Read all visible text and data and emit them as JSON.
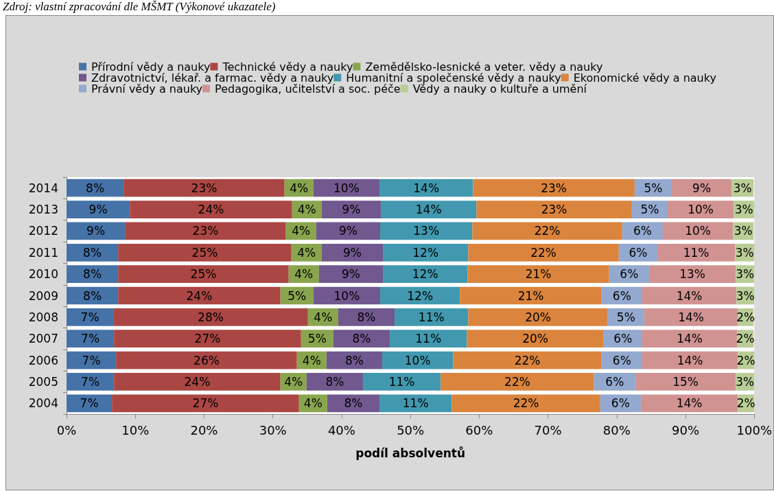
{
  "chart_data": {
    "type": "bar",
    "orientation": "horizontal",
    "stacked": true,
    "xlabel": "podíl absolventů",
    "annotations": [
      "Zdroj: vlastní zpracování dle MŠMT (Výkonové ukazatele)"
    ],
    "categories": [
      "2014",
      "2013",
      "2012",
      "2011",
      "2010",
      "2009",
      "2008",
      "2007",
      "2006",
      "2005",
      "2004"
    ],
    "series": [
      {
        "name": "Přírodní vědy a nauky",
        "color": "#4572a7",
        "values": [
          8.3,
          9.2,
          8.5,
          7.5,
          7.5,
          7.5,
          6.8,
          6.9,
          7.2,
          6.9,
          6.6
        ],
        "value_labels": [
          "8%",
          "9%",
          "9%",
          "8%",
          "8%",
          "8%",
          "7%",
          "7%",
          "7%",
          "7%",
          "7%"
        ]
      },
      {
        "name": "Technické vědy a nauky",
        "color": "#aa4643",
        "values": [
          23.4,
          23.6,
          23.4,
          25.2,
          24.8,
          23.6,
          28.3,
          27.2,
          26.3,
          24.2,
          27.2
        ],
        "value_labels": [
          "23%",
          "24%",
          "23%",
          "25%",
          "25%",
          "24%",
          "28%",
          "27%",
          "26%",
          "24%",
          "27%"
        ]
      },
      {
        "name": "Zemědělsko-lesnické a veter. vědy a nauky",
        "color": "#89a54e",
        "values": [
          4.2,
          4.3,
          4.4,
          4.4,
          4.4,
          4.8,
          4.4,
          4.7,
          4.3,
          3.8,
          4.1
        ],
        "value_labels": [
          "4%",
          "4%",
          "4%",
          "4%",
          "4%",
          "5%",
          "4%",
          "5%",
          "4%",
          "4%",
          "4%"
        ]
      },
      {
        "name": "Zdravotnictví, lékař. a farmac. vědy a nauky",
        "color": "#71588f",
        "values": [
          9.6,
          8.6,
          9.3,
          8.9,
          9.3,
          9.7,
          8.2,
          8.2,
          8.1,
          8.2,
          7.6
        ],
        "value_labels": [
          "10%",
          "9%",
          "9%",
          "9%",
          "9%",
          "10%",
          "8%",
          "8%",
          "8%",
          "8%",
          "8%"
        ]
      },
      {
        "name": "Humanitní a společenské vědy a nauky",
        "color": "#4198af",
        "values": [
          13.6,
          13.9,
          13.4,
          12.4,
          12.3,
          11.6,
          10.7,
          11.2,
          10.3,
          11.3,
          10.5
        ],
        "value_labels": [
          "14%",
          "14%",
          "13%",
          "12%",
          "12%",
          "12%",
          "11%",
          "11%",
          "10%",
          "11%",
          "11%"
        ]
      },
      {
        "name": "Ekonomické vědy a nauky",
        "color": "#db843d",
        "values": [
          23.5,
          22.6,
          21.8,
          21.9,
          20.6,
          20.6,
          20.3,
          19.9,
          21.6,
          22.3,
          21.6
        ],
        "value_labels": [
          "23%",
          "23%",
          "22%",
          "22%",
          "21%",
          "21%",
          "20%",
          "20%",
          "22%",
          "22%",
          "22%"
        ]
      },
      {
        "name": "Právní vědy a nauky",
        "color": "#93a9cf",
        "values": [
          5.4,
          5.2,
          5.9,
          5.6,
          5.8,
          5.9,
          5.3,
          5.6,
          5.9,
          6.0,
          5.9
        ],
        "value_labels": [
          "5%",
          "5%",
          "6%",
          "6%",
          "6%",
          "6%",
          "5%",
          "6%",
          "6%",
          "6%",
          "6%"
        ]
      },
      {
        "name": "Pedagogika, učitelství a soc. péče",
        "color": "#d19392",
        "values": [
          8.7,
          9.6,
          10.2,
          11.3,
          12.6,
          13.7,
          13.6,
          13.8,
          13.9,
          14.6,
          14.1
        ],
        "value_labels": [
          "9%",
          "10%",
          "10%",
          "11%",
          "13%",
          "14%",
          "14%",
          "14%",
          "14%",
          "15%",
          "14%"
        ]
      },
      {
        "name": "Vědy a nauky o kultuře a umění",
        "color": "#b9cd96",
        "values": [
          3.2,
          3.0,
          3.0,
          2.9,
          2.8,
          2.7,
          2.3,
          2.4,
          2.4,
          2.8,
          2.4
        ],
        "value_labels": [
          "3%",
          "3%",
          "3%",
          "3%",
          "3%",
          "3%",
          "2%",
          "2%",
          "2%",
          "3%",
          "2%"
        ]
      }
    ],
    "xlim": [
      0,
      100
    ],
    "xticks": [
      {
        "value": 0,
        "label": "0%"
      },
      {
        "value": 10,
        "label": "10%"
      },
      {
        "value": 20,
        "label": "20%"
      },
      {
        "value": 30,
        "label": "30%"
      },
      {
        "value": 40,
        "label": "40%"
      },
      {
        "value": 50,
        "label": "50%"
      },
      {
        "value": 60,
        "label": "60%"
      },
      {
        "value": 70,
        "label": "70%"
      },
      {
        "value": 80,
        "label": "80%"
      },
      {
        "value": 90,
        "label": "90%"
      },
      {
        "value": 100,
        "label": "100%"
      }
    ],
    "grid": false,
    "legend": "top"
  }
}
